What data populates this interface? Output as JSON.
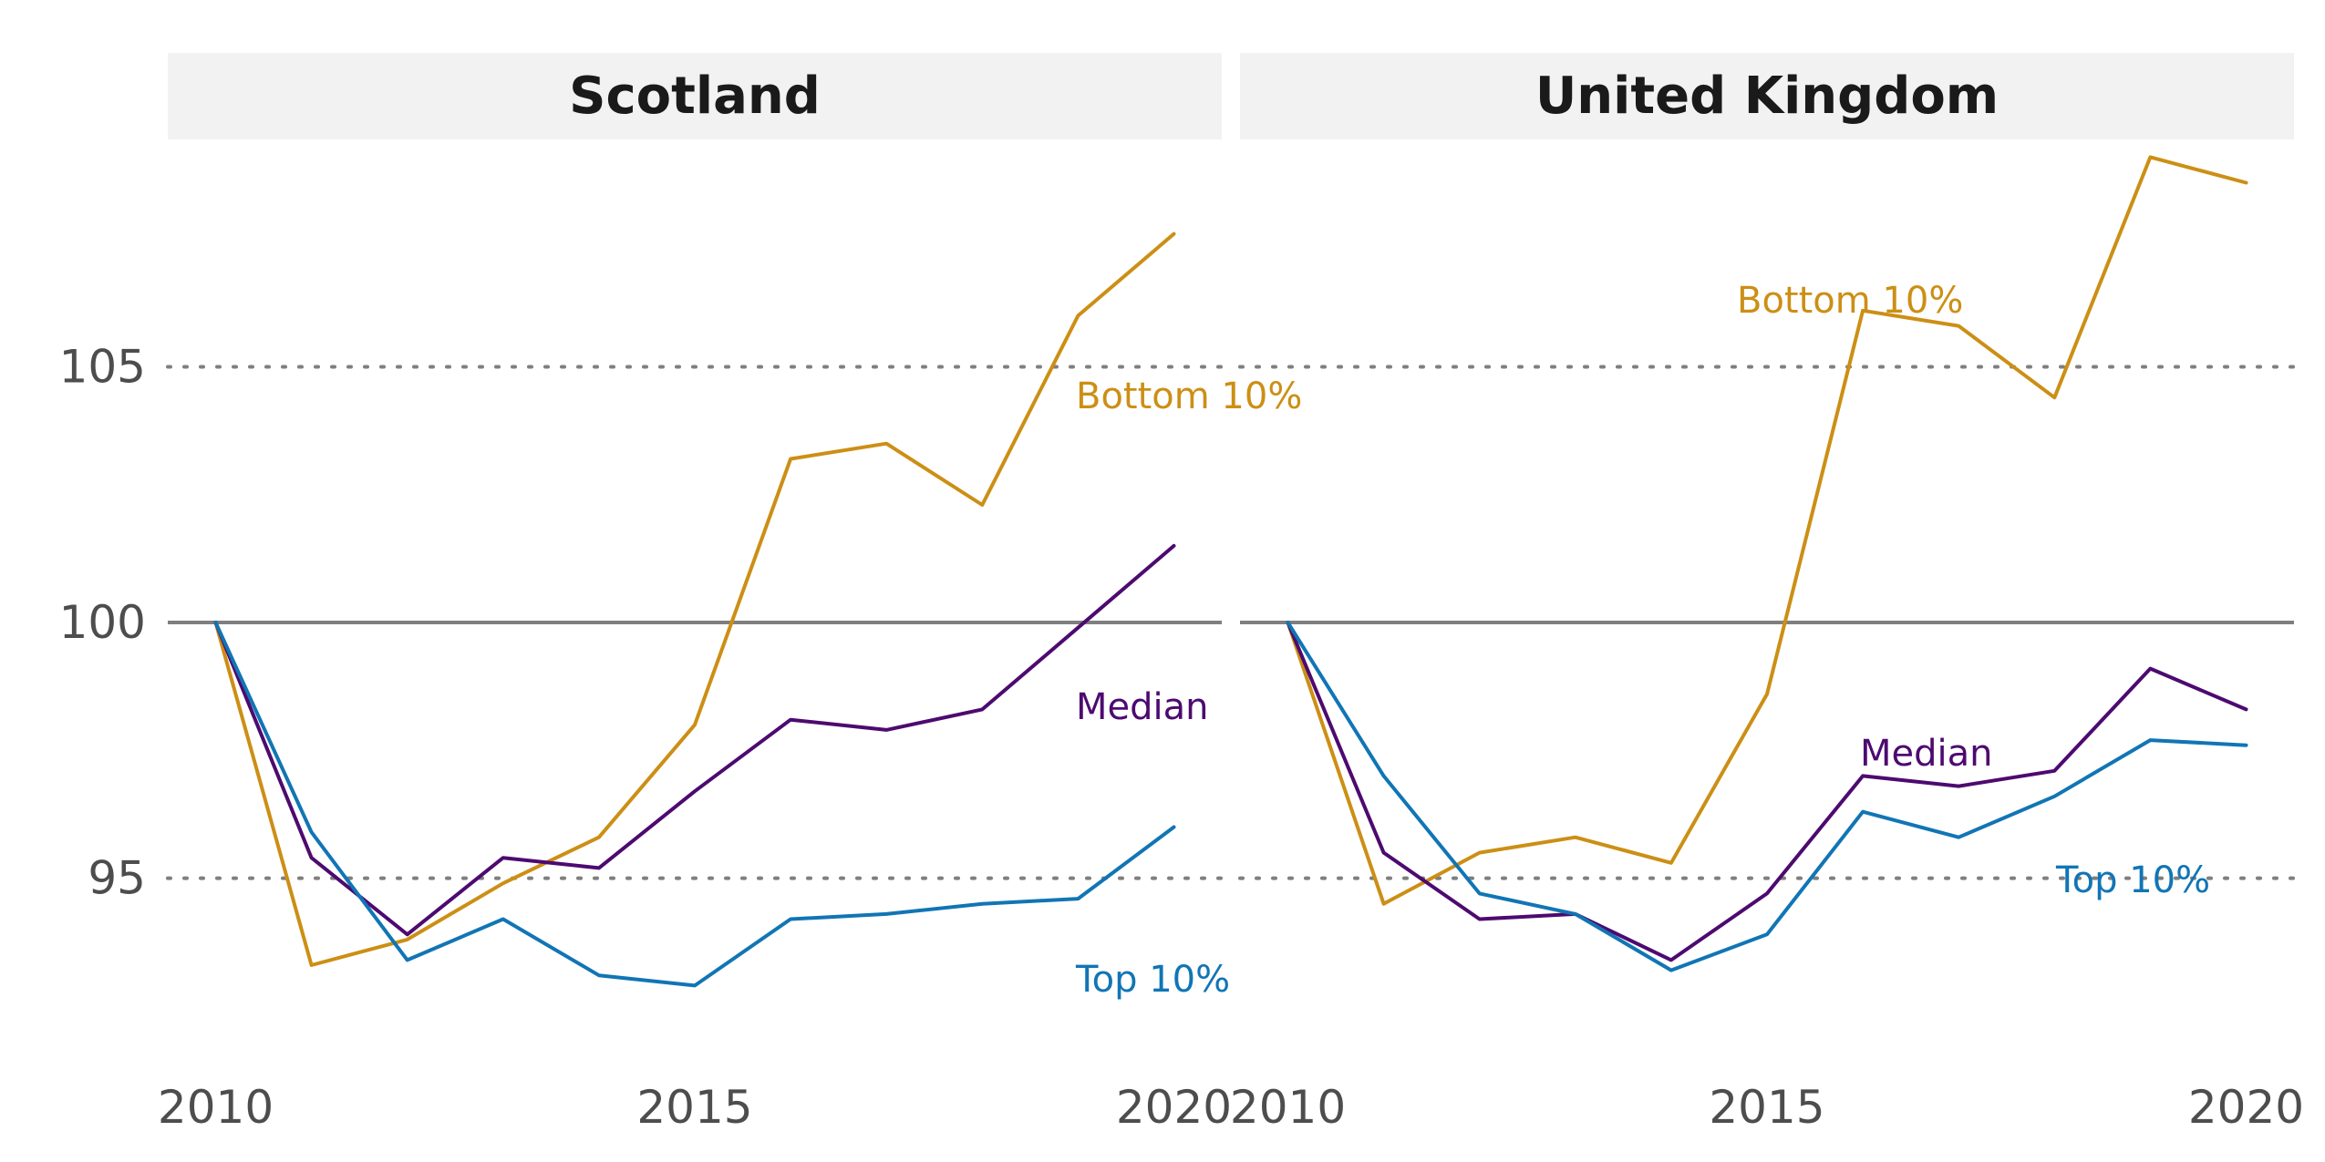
{
  "chart_data": {
    "type": "line",
    "colors": {
      "Bottom 10%": "#CC8F15",
      "Median": "#4D0A70",
      "Top 10%": "#1175B5"
    },
    "y_axis": {
      "ylim": [
        91.5,
        109.5
      ],
      "ticks": [
        95,
        100,
        105
      ],
      "tick_labels": [
        "95",
        "100",
        "105"
      ],
      "reference_line": 100
    },
    "x_axis": {
      "xlim": [
        2009.5,
        2020.5
      ],
      "ticks": [
        2010,
        2015,
        2020
      ],
      "tick_labels": [
        "2010",
        "2015",
        "2020"
      ]
    },
    "panels": [
      {
        "title": "Scotland",
        "x": [
          2010,
          2011,
          2012,
          2013,
          2014,
          2015,
          2016,
          2017,
          2018,
          2019,
          2020
        ],
        "series": [
          {
            "name": "Bottom 10%",
            "label": "Bottom 10%",
            "values": [
              100,
              93.3,
              93.8,
              94.9,
              95.8,
              98.0,
              103.2,
              103.5,
              102.3,
              106.0,
              107.6
            ]
          },
          {
            "name": "Median",
            "label": "Median",
            "values": [
              100,
              95.4,
              93.9,
              95.4,
              95.2,
              96.7,
              98.1,
              97.9,
              98.3,
              99.9,
              101.5
            ]
          },
          {
            "name": "Top 10%",
            "label": "Top 10%",
            "values": [
              100,
              95.9,
              93.4,
              94.2,
              93.1,
              92.9,
              94.2,
              94.3,
              94.5,
              94.6,
              96.0
            ]
          }
        ]
      },
      {
        "title": "United Kingdom",
        "x": [
          2010,
          2011,
          2012,
          2013,
          2014,
          2015,
          2016,
          2017,
          2018,
          2019,
          2020
        ],
        "series": [
          {
            "name": "Bottom 10%",
            "label": "Bottom 10%",
            "values": [
              100,
              94.5,
              95.5,
              95.8,
              95.3,
              98.6,
              106.1,
              105.8,
              104.4,
              109.1,
              108.6
            ]
          },
          {
            "name": "Median",
            "label": "Median",
            "values": [
              100,
              95.5,
              94.2,
              94.3,
              93.4,
              94.7,
              97.0,
              96.8,
              97.1,
              99.1,
              98.3
            ]
          },
          {
            "name": "Top 10%",
            "label": "Top 10%",
            "values": [
              100,
              97.0,
              94.7,
              94.3,
              93.2,
              93.9,
              96.3,
              95.8,
              96.6,
              97.7,
              97.6
            ]
          }
        ]
      }
    ]
  }
}
